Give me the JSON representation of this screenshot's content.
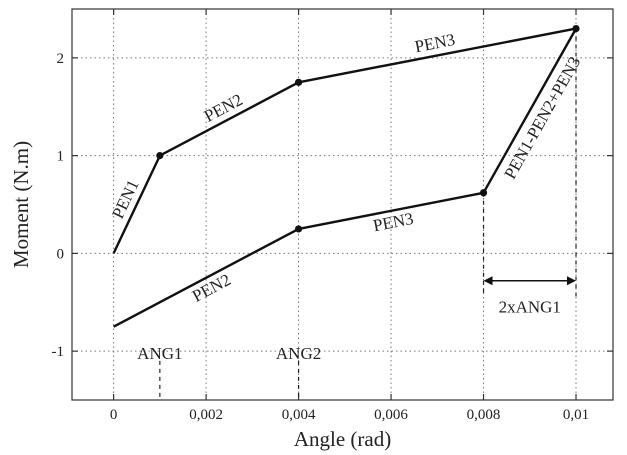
{
  "chart_data": {
    "type": "line",
    "title": "",
    "xlabel": "Angle (rad)",
    "ylabel": "Moment (N.m)",
    "xlim": [
      -0.0009,
      0.0108
    ],
    "ylim": [
      -1.5,
      2.5
    ],
    "grid": true,
    "x_ticks": [
      {
        "value": 0,
        "label": "0"
      },
      {
        "value": 0.002,
        "label": "0,002"
      },
      {
        "value": 0.004,
        "label": "0,004"
      },
      {
        "value": 0.006,
        "label": "0,006"
      },
      {
        "value": 0.008,
        "label": "0,008"
      },
      {
        "value": 0.01,
        "label": "0,01"
      }
    ],
    "y_ticks": [
      {
        "value": -1,
        "label": "-1"
      },
      {
        "value": 0,
        "label": "0"
      },
      {
        "value": 1,
        "label": "1"
      },
      {
        "value": 2,
        "label": "2"
      }
    ],
    "series": [
      {
        "points": [
          [
            0,
            0
          ],
          [
            0.001,
            1.0
          ],
          [
            0.004,
            1.75
          ],
          [
            0.01,
            2.3
          ]
        ]
      },
      {
        "points": [
          [
            0,
            -0.75
          ],
          [
            0.004,
            0.25
          ],
          [
            0.008,
            0.62
          ],
          [
            0.01,
            2.3
          ]
        ]
      }
    ],
    "markers": [
      [
        0.001,
        1.0
      ],
      [
        0.004,
        1.75
      ],
      [
        0.01,
        2.3
      ],
      [
        0.004,
        0.25
      ],
      [
        0.008,
        0.62
      ]
    ],
    "annotations": {
      "segments": [
        {
          "text": "PEN1",
          "from": [
            0,
            0
          ],
          "to": [
            0.001,
            1.0
          ],
          "side": "above"
        },
        {
          "text": "PEN2",
          "from": [
            0.001,
            1.0
          ],
          "to": [
            0.004,
            1.75
          ],
          "side": "above"
        },
        {
          "text": "PEN3",
          "from": [
            0.004,
            1.75
          ],
          "to": [
            0.01,
            2.3
          ],
          "side": "above"
        },
        {
          "text": "PEN2",
          "from": [
            0,
            -0.75
          ],
          "to": [
            0.004,
            0.25
          ],
          "side": "below"
        },
        {
          "text": "PEN3",
          "from": [
            0.004,
            0.25
          ],
          "to": [
            0.008,
            0.62
          ],
          "side": "below"
        },
        {
          "text": "PEN1-PEN2+PEN3",
          "from": [
            0.008,
            0.62
          ],
          "to": [
            0.01,
            2.3
          ],
          "side": "right"
        }
      ],
      "guides": [
        {
          "label": "ANG1",
          "x": 0.001
        },
        {
          "label": "ANG2",
          "x": 0.004
        },
        {
          "x": 0.008
        },
        {
          "x": 0.01
        }
      ],
      "dimension": {
        "label": "2xANG1",
        "x1": 0.008,
        "x2": 0.01,
        "y": -0.28
      }
    }
  }
}
